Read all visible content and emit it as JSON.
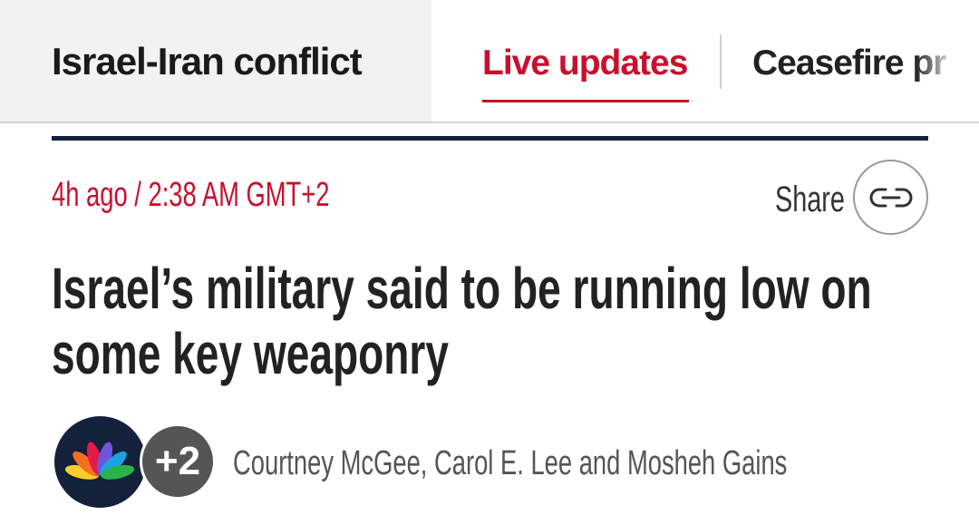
{
  "nav": {
    "topic": "Israel-Iran conflict",
    "tabs": [
      {
        "label": "Live updates",
        "active": true
      },
      {
        "label": "Ceasefire pr",
        "active": false
      }
    ]
  },
  "article": {
    "timestamp": "4h ago / 2:38 AM GMT+2",
    "share_label": "Share",
    "headline_line1": "Israel’s military said to be running low on",
    "headline_line2": "some key weaponry",
    "extra_authors": "+2",
    "bylines": "Courtney McGee, Carol E. Lee and Mosheh Gains"
  },
  "colors": {
    "accent": "#c8102e",
    "rule": "#14213a",
    "topic_bg": "#f2f2f2"
  },
  "icons": {
    "share": "link-icon",
    "avatar": "nbc-peacock-logo"
  }
}
